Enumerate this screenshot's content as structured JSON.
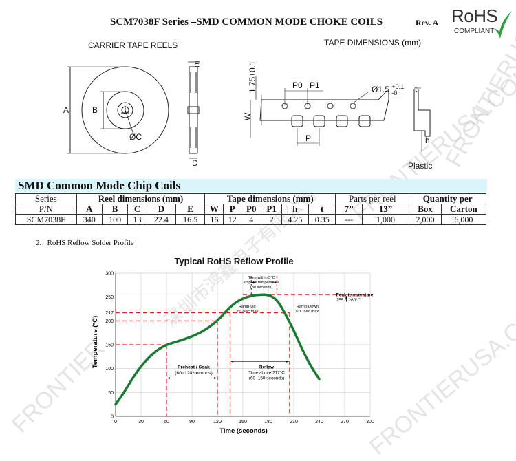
{
  "header": {
    "title": "SCM7038F Series –SMD COMMON MODE CHOKE COILS",
    "revision": "Rev. A",
    "rohs_logo": {
      "word": "RoHS",
      "sub": "COMPLIANT",
      "check_color": "#2ea043"
    }
  },
  "carrier_tape_reels": {
    "heading": "CARRIER TAPE REELS",
    "labels": {
      "A": "A",
      "B": "B",
      "C": "ØC",
      "D": "D",
      "E": "E"
    }
  },
  "tape_dimensions": {
    "heading": "TAPE DIMENSIONS (mm)",
    "labels": {
      "height": "1.75±0.1",
      "W": "W",
      "P0": "P0",
      "P1": "P1",
      "P": "P",
      "hole_prefix": "Ø1.5",
      "hole_plus": "+0.1",
      "hole_minus": "-0",
      "t": "t",
      "h": "h",
      "plastic": "Plastic"
    }
  },
  "table": {
    "banner": "SMD Common Mode Chip Coils",
    "group_headers": {
      "series": "Series",
      "reel": "Reel dimensions (mm)",
      "tape": "Tape dimensions (mm)",
      "parts": "Parts per reel",
      "qty": "Quantity per"
    },
    "sub_headers": [
      "P/N",
      "A",
      "B",
      "C",
      "D",
      "E",
      "W",
      "P",
      "P0",
      "P1",
      "h",
      "t",
      "7”",
      "13”",
      "Box",
      "Carton"
    ],
    "rows": [
      [
        "SCM7038F",
        "340",
        "100",
        "13",
        "22.4",
        "16.5",
        "16",
        "12",
        "4",
        "2",
        "4.25",
        "0.35",
        "---",
        "1,000",
        "2,000",
        "6,000"
      ]
    ]
  },
  "section_title": "2.   RoHS Reflow Solder Profile",
  "watermarks": [
    "FRONTIERUSA.COM",
    "FRONTIERUSA.COM",
    "FRONTIERUSA.COM",
    "FRONTIER",
    "深圳市鸿鑫电子有限公司"
  ],
  "chart_data": {
    "type": "line",
    "title": "Typical RoHS Reflow Profile",
    "xlabel": "Time (seconds)",
    "ylabel": "Temperature (°C)",
    "xlim": [
      0,
      300
    ],
    "ylim": [
      0,
      300
    ],
    "x_ticks": [
      0,
      30,
      60,
      90,
      120,
      150,
      180,
      210,
      240,
      270,
      300
    ],
    "y_ticks": [
      0,
      50,
      100,
      150,
      200,
      217,
      250,
      300
    ],
    "grid": true,
    "line_color": "#1a7a32",
    "ref_color": "#e02020",
    "series": [
      {
        "x": [
          0,
          10,
          20,
          30,
          40,
          50,
          60,
          75,
          90,
          105,
          120,
          130,
          140,
          150,
          160,
          170,
          180,
          190,
          200,
          210,
          220,
          230,
          240
        ],
        "y": [
          25,
          50,
          80,
          105,
          125,
          140,
          150,
          158,
          167,
          180,
          200,
          220,
          237,
          247,
          253,
          255,
          255,
          245,
          215,
          180,
          140,
          105,
          78
        ]
      }
    ],
    "reference_lines": {
      "y": [
        150,
        200,
        217,
        255
      ],
      "x": [
        60,
        120,
        135,
        205
      ]
    },
    "annotations": {
      "time_within": [
        "Time within 5°C",
        "of peak temperature",
        "(30 seconds)"
      ],
      "ramp_up": [
        "Ramp-Up",
        "3°C/sec max"
      ],
      "ramp_down": [
        "Ramp-Down",
        "6°C/sec max"
      ],
      "peak": [
        "Peak temperature",
        "255 ~ 260°C"
      ],
      "preheat": [
        "Preheat / Soak",
        "(60~120 seconds)"
      ],
      "reflow": [
        "Reflow",
        "Time above 217°C",
        "(60~150 seconds)"
      ]
    }
  }
}
